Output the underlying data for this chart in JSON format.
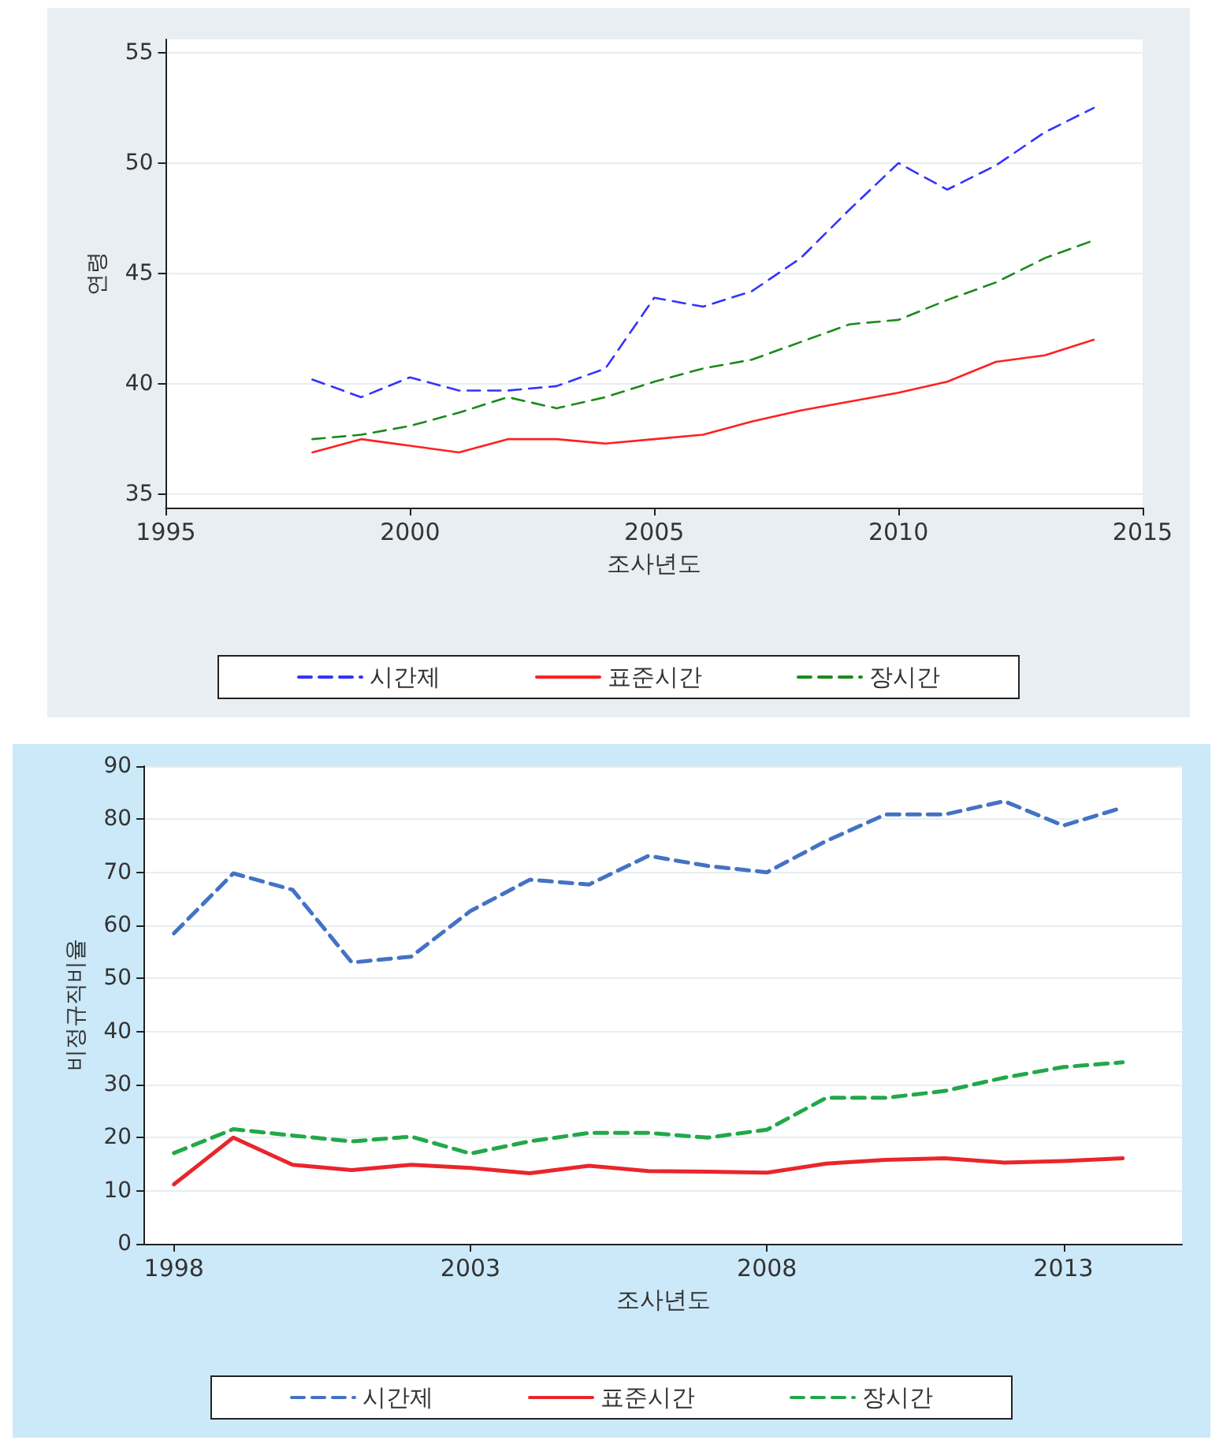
{
  "chart_data": [
    {
      "type": "line",
      "xlabel": "조사년도",
      "ylabel": "연령",
      "x": [
        1998,
        1999,
        2000,
        2001,
        2002,
        2003,
        2004,
        2005,
        2006,
        2007,
        2008,
        2009,
        2010,
        2011,
        2012,
        2013,
        2014
      ],
      "xlim": [
        1995,
        2015
      ],
      "xticks": [
        1995,
        2000,
        2005,
        2010,
        2015
      ],
      "ylim": [
        34.4,
        55.6
      ],
      "yticks": [
        35,
        40,
        45,
        50,
        55
      ],
      "grid": "y",
      "legend": "bottom",
      "marker": "none",
      "series": [
        {
          "name": "시간제",
          "color": "#3333ff",
          "line_style": "dashed",
          "values": [
            40.2,
            39.4,
            40.3,
            39.7,
            39.7,
            39.9,
            40.7,
            43.9,
            43.5,
            44.2,
            45.7,
            47.9,
            50.0,
            48.8,
            49.9,
            51.4,
            52.5
          ]
        },
        {
          "name": "표준시간",
          "color": "#ff2020",
          "line_style": "solid",
          "values": [
            36.9,
            37.5,
            37.2,
            36.9,
            37.5,
            37.5,
            37.3,
            37.5,
            37.7,
            38.3,
            38.8,
            39.2,
            39.6,
            40.1,
            41.0,
            41.3,
            42.0
          ]
        },
        {
          "name": "장시간",
          "color": "#1a8a1a",
          "line_style": "dashed",
          "values": [
            37.5,
            37.7,
            38.1,
            38.7,
            39.4,
            38.9,
            39.4,
            40.1,
            40.7,
            41.1,
            41.9,
            42.7,
            42.9,
            43.8,
            44.6,
            45.7,
            46.5
          ]
        }
      ]
    },
    {
      "type": "line",
      "xlabel": "조사년도",
      "ylabel": "비정규직비율",
      "x": [
        1998,
        1999,
        2000,
        2001,
        2002,
        2003,
        2004,
        2005,
        2006,
        2007,
        2008,
        2009,
        2010,
        2011,
        2012,
        2013,
        2014
      ],
      "xlim": [
        1997.5,
        2015
      ],
      "xticks": [
        1998,
        2003,
        2008,
        2013
      ],
      "ylim": [
        0,
        90
      ],
      "yticks": [
        0,
        10,
        20,
        30,
        40,
        50,
        60,
        70,
        80,
        90
      ],
      "grid": "y",
      "legend": "bottom",
      "marker": "none",
      "series": [
        {
          "name": "시간제",
          "color": "#4472c4",
          "line_style": "dashed",
          "values": [
            58.5,
            69.8,
            66.7,
            53.0,
            54.1,
            62.7,
            68.6,
            67.7,
            73.1,
            71.2,
            70.0,
            75.9,
            80.9,
            80.9,
            83.4,
            78.8,
            82.2
          ]
        },
        {
          "name": "표준시간",
          "color": "#e8262c",
          "line_style": "solid",
          "values": [
            11.2,
            20.0,
            14.9,
            13.9,
            14.9,
            14.3,
            13.3,
            14.7,
            13.7,
            13.6,
            13.4,
            15.1,
            15.8,
            16.1,
            15.3,
            15.6,
            16.1
          ]
        },
        {
          "name": "장시간",
          "color": "#22a84a",
          "line_style": "dashed",
          "values": [
            17.1,
            21.6,
            20.4,
            19.3,
            20.2,
            17.0,
            19.3,
            20.9,
            20.9,
            20.0,
            21.5,
            27.5,
            27.5,
            28.8,
            31.3,
            33.3,
            34.2
          ]
        }
      ]
    }
  ]
}
